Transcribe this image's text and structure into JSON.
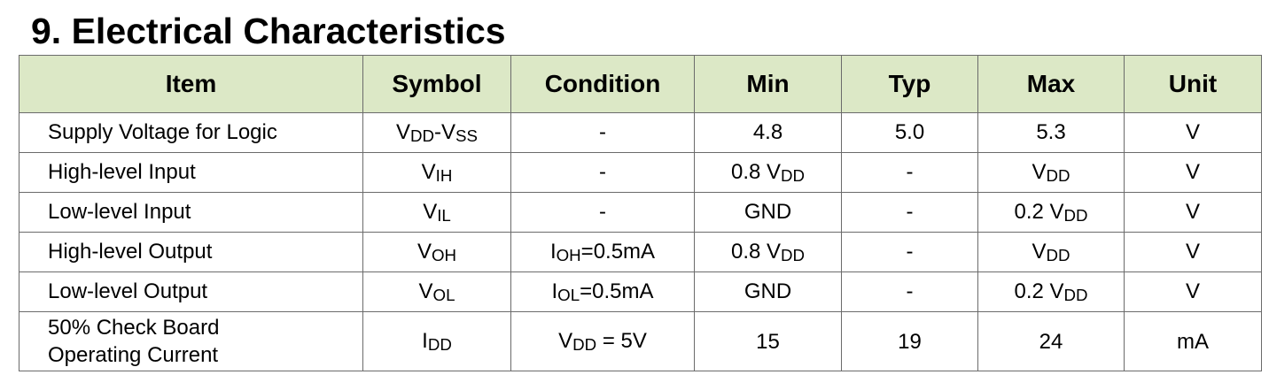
{
  "title": "9. Electrical Characteristics",
  "table": {
    "header": [
      "Item",
      "Symbol",
      "Condition",
      "Min",
      "Typ",
      "Max",
      "Unit"
    ],
    "rows": [
      [
        "Supply Voltage for Logic",
        [
          "V",
          {
            "sub": "DD"
          },
          "-V",
          {
            "sub": "SS"
          }
        ],
        "-",
        "4.8",
        "5.0",
        "5.3",
        "V"
      ],
      [
        "High-level Input",
        [
          "V",
          {
            "sub": "IH"
          }
        ],
        "-",
        [
          "0.8 V",
          {
            "sub": "DD"
          }
        ],
        "-",
        [
          "V",
          {
            "sub": "DD"
          }
        ],
        "V"
      ],
      [
        "Low-level Input",
        [
          "V",
          {
            "sub": "IL"
          }
        ],
        "-",
        "GND",
        "-",
        [
          "0.2 V",
          {
            "sub": "DD"
          }
        ],
        "V"
      ],
      [
        "High-level Output",
        [
          "V",
          {
            "sub": "OH"
          }
        ],
        [
          "I",
          {
            "sub": "OH"
          },
          "=0.5mA"
        ],
        [
          "0.8 V",
          {
            "sub": "DD"
          }
        ],
        "-",
        [
          "V",
          {
            "sub": "DD"
          }
        ],
        "V"
      ],
      [
        "Low-level Output",
        [
          "V",
          {
            "sub": "OL"
          }
        ],
        [
          "I",
          {
            "sub": "OL"
          },
          "=0.5mA"
        ],
        "GND",
        "-",
        [
          "0.2 V",
          {
            "sub": "DD"
          }
        ],
        "V"
      ],
      [
        {
          "lines": [
            "50% Check Board",
            "Operating Current"
          ]
        },
        [
          "I",
          {
            "sub": "DD"
          }
        ],
        [
          "V",
          {
            "sub": "DD"
          },
          " = 5V"
        ],
        "15",
        "19",
        "24",
        "mA"
      ]
    ]
  }
}
